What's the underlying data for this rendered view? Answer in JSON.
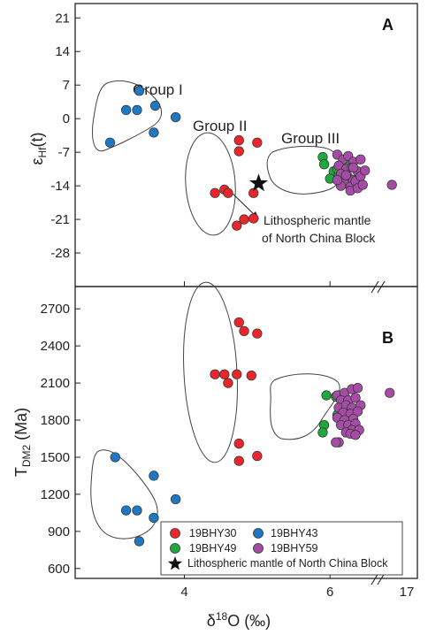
{
  "chart_data": [
    {
      "panel": "A",
      "type": "scatter",
      "ylabel_main": "ε",
      "ylabel_sub": "Hf",
      "ylabel_tail": "(t)",
      "ylim": [
        -35,
        24
      ],
      "yticks": [
        "21",
        "14",
        "7",
        "0",
        "-7",
        "-14",
        "-21",
        "-28"
      ],
      "yticks_values": [
        21,
        14,
        7,
        0,
        -7,
        -14,
        -21,
        -28
      ],
      "groups": [
        {
          "label": "Group I"
        },
        {
          "label": "Group II"
        },
        {
          "label": "Group III"
        }
      ],
      "annotation_lines": [
        "Lithospheric mantle",
        "of North China Block"
      ],
      "series": [
        {
          "name": "19BHY30",
          "color": "#e8262b",
          "x": [
            4.75,
            5.0,
            4.75,
            4.42,
            4.55,
            4.6,
            4.95,
            4.82,
            4.72,
            4.95
          ],
          "y": [
            -4.5,
            -5.0,
            -6.8,
            -15.5,
            -14.8,
            -15.5,
            -15.5,
            -21.0,
            -22.3,
            -20.8
          ]
        },
        {
          "name": "19BHY43",
          "color": "#1f78c1",
          "x": [
            3.38,
            3.2,
            3.35,
            3.6,
            3.88,
            2.98,
            3.58
          ],
          "y": [
            5.8,
            1.8,
            1.8,
            2.7,
            0.3,
            -5.0,
            -2.9
          ]
        },
        {
          "name": "19BHY49",
          "color": "#1fa83d",
          "x": [
            5.9,
            5.92,
            6.05,
            6.12,
            6.0,
            6.1,
            6.2
          ],
          "y": [
            -8.0,
            -9.5,
            -11.0,
            -11.8,
            -12.5,
            -10.5,
            -9.2
          ]
        },
        {
          "name": "19BHY59",
          "color": "#a64ca6",
          "x": [
            6.1,
            6.18,
            6.25,
            6.32,
            6.42,
            6.12,
            6.22,
            6.3,
            6.38,
            6.15,
            6.25,
            6.32,
            6.2,
            6.28,
            6.35,
            6.42,
            6.48,
            6.15,
            6.28,
            6.38,
            6.22,
            6.32,
            6.1,
            6.45,
            6.85
          ],
          "y": [
            -7.5,
            -8.5,
            -7.8,
            -9.0,
            -8.5,
            -9.8,
            -10.5,
            -10.2,
            -11.0,
            -11.5,
            -12.2,
            -12.8,
            -13.5,
            -14.2,
            -13.0,
            -12.0,
            -10.8,
            -14.0,
            -15.0,
            -14.5,
            -11.8,
            -10.2,
            -12.8,
            -13.8,
            -13.8
          ]
        },
        {
          "name": "Lithospheric mantle of North China Block",
          "symbol": "star",
          "x": [
            5.02
          ],
          "y": [
            -13.5
          ]
        }
      ]
    },
    {
      "panel": "B",
      "type": "scatter",
      "ylabel_main": "T",
      "ylabel_sub": "DM2",
      "ylabel_tail": " (Ma)",
      "ylim": [
        520,
        2880
      ],
      "yticks": [
        "2700",
        "2400",
        "2100",
        "1800",
        "1500",
        "1200",
        "900",
        "600"
      ],
      "yticks_values": [
        2700,
        2400,
        2100,
        1800,
        1500,
        1200,
        900,
        600
      ],
      "xlabel_main": "δ",
      "xlabel_sup": "18",
      "xlabel_tail": "O (‰)",
      "xlim": [
        2.5,
        7.2
      ],
      "xticks": [
        "4",
        "6"
      ],
      "xticks_values": [
        4,
        6
      ],
      "xbreak_tick": "17",
      "series": [
        {
          "name": "19BHY30",
          "color": "#e8262b",
          "x": [
            4.75,
            4.82,
            5.0,
            4.42,
            4.55,
            4.72,
            4.92,
            4.6,
            4.75,
            5.0,
            4.75
          ],
          "y": [
            2590,
            2520,
            2500,
            2170,
            2170,
            2170,
            2160,
            2100,
            1610,
            1510,
            1470
          ]
        },
        {
          "name": "19BHY43",
          "color": "#1f78c1",
          "x": [
            3.05,
            3.58,
            3.88,
            3.2,
            3.35,
            3.58,
            3.38
          ],
          "y": [
            1500,
            1350,
            1160,
            1070,
            1070,
            1010,
            820
          ]
        },
        {
          "name": "19BHY49",
          "color": "#1fa83d",
          "x": [
            5.95,
            6.08,
            6.15,
            6.1,
            5.92,
            6.2,
            5.9
          ],
          "y": [
            2000,
            1990,
            1880,
            1840,
            1760,
            1780,
            1700
          ]
        },
        {
          "name": "19BHY59",
          "color": "#a64ca6",
          "x": [
            6.1,
            6.2,
            6.3,
            6.38,
            6.15,
            6.25,
            6.35,
            6.12,
            6.22,
            6.3,
            6.42,
            6.18,
            6.28,
            6.38,
            6.1,
            6.2,
            6.32,
            6.15,
            6.25,
            6.35,
            6.3,
            6.4,
            6.22,
            6.28,
            6.35,
            6.12,
            6.82,
            6.08
          ],
          "y": [
            2000,
            2020,
            2050,
            2060,
            1960,
            1960,
            1980,
            1900,
            1920,
            1900,
            1920,
            1860,
            1850,
            1870,
            1820,
            1800,
            1810,
            1760,
            1760,
            1770,
            1720,
            1720,
            1700,
            1690,
            1680,
            1620,
            2020,
            1620
          ]
        }
      ]
    }
  ],
  "legend": {
    "items": [
      {
        "label": "19BHY30",
        "color": "#e8262b"
      },
      {
        "label": "19BHY43",
        "color": "#1f78c1"
      },
      {
        "label": "19BHY49",
        "color": "#1fa83d"
      },
      {
        "label": "19BHY59",
        "color": "#a64ca6"
      }
    ],
    "star_label": "Lithospheric mantle of North China Block",
    "placement": "bottom-right"
  }
}
